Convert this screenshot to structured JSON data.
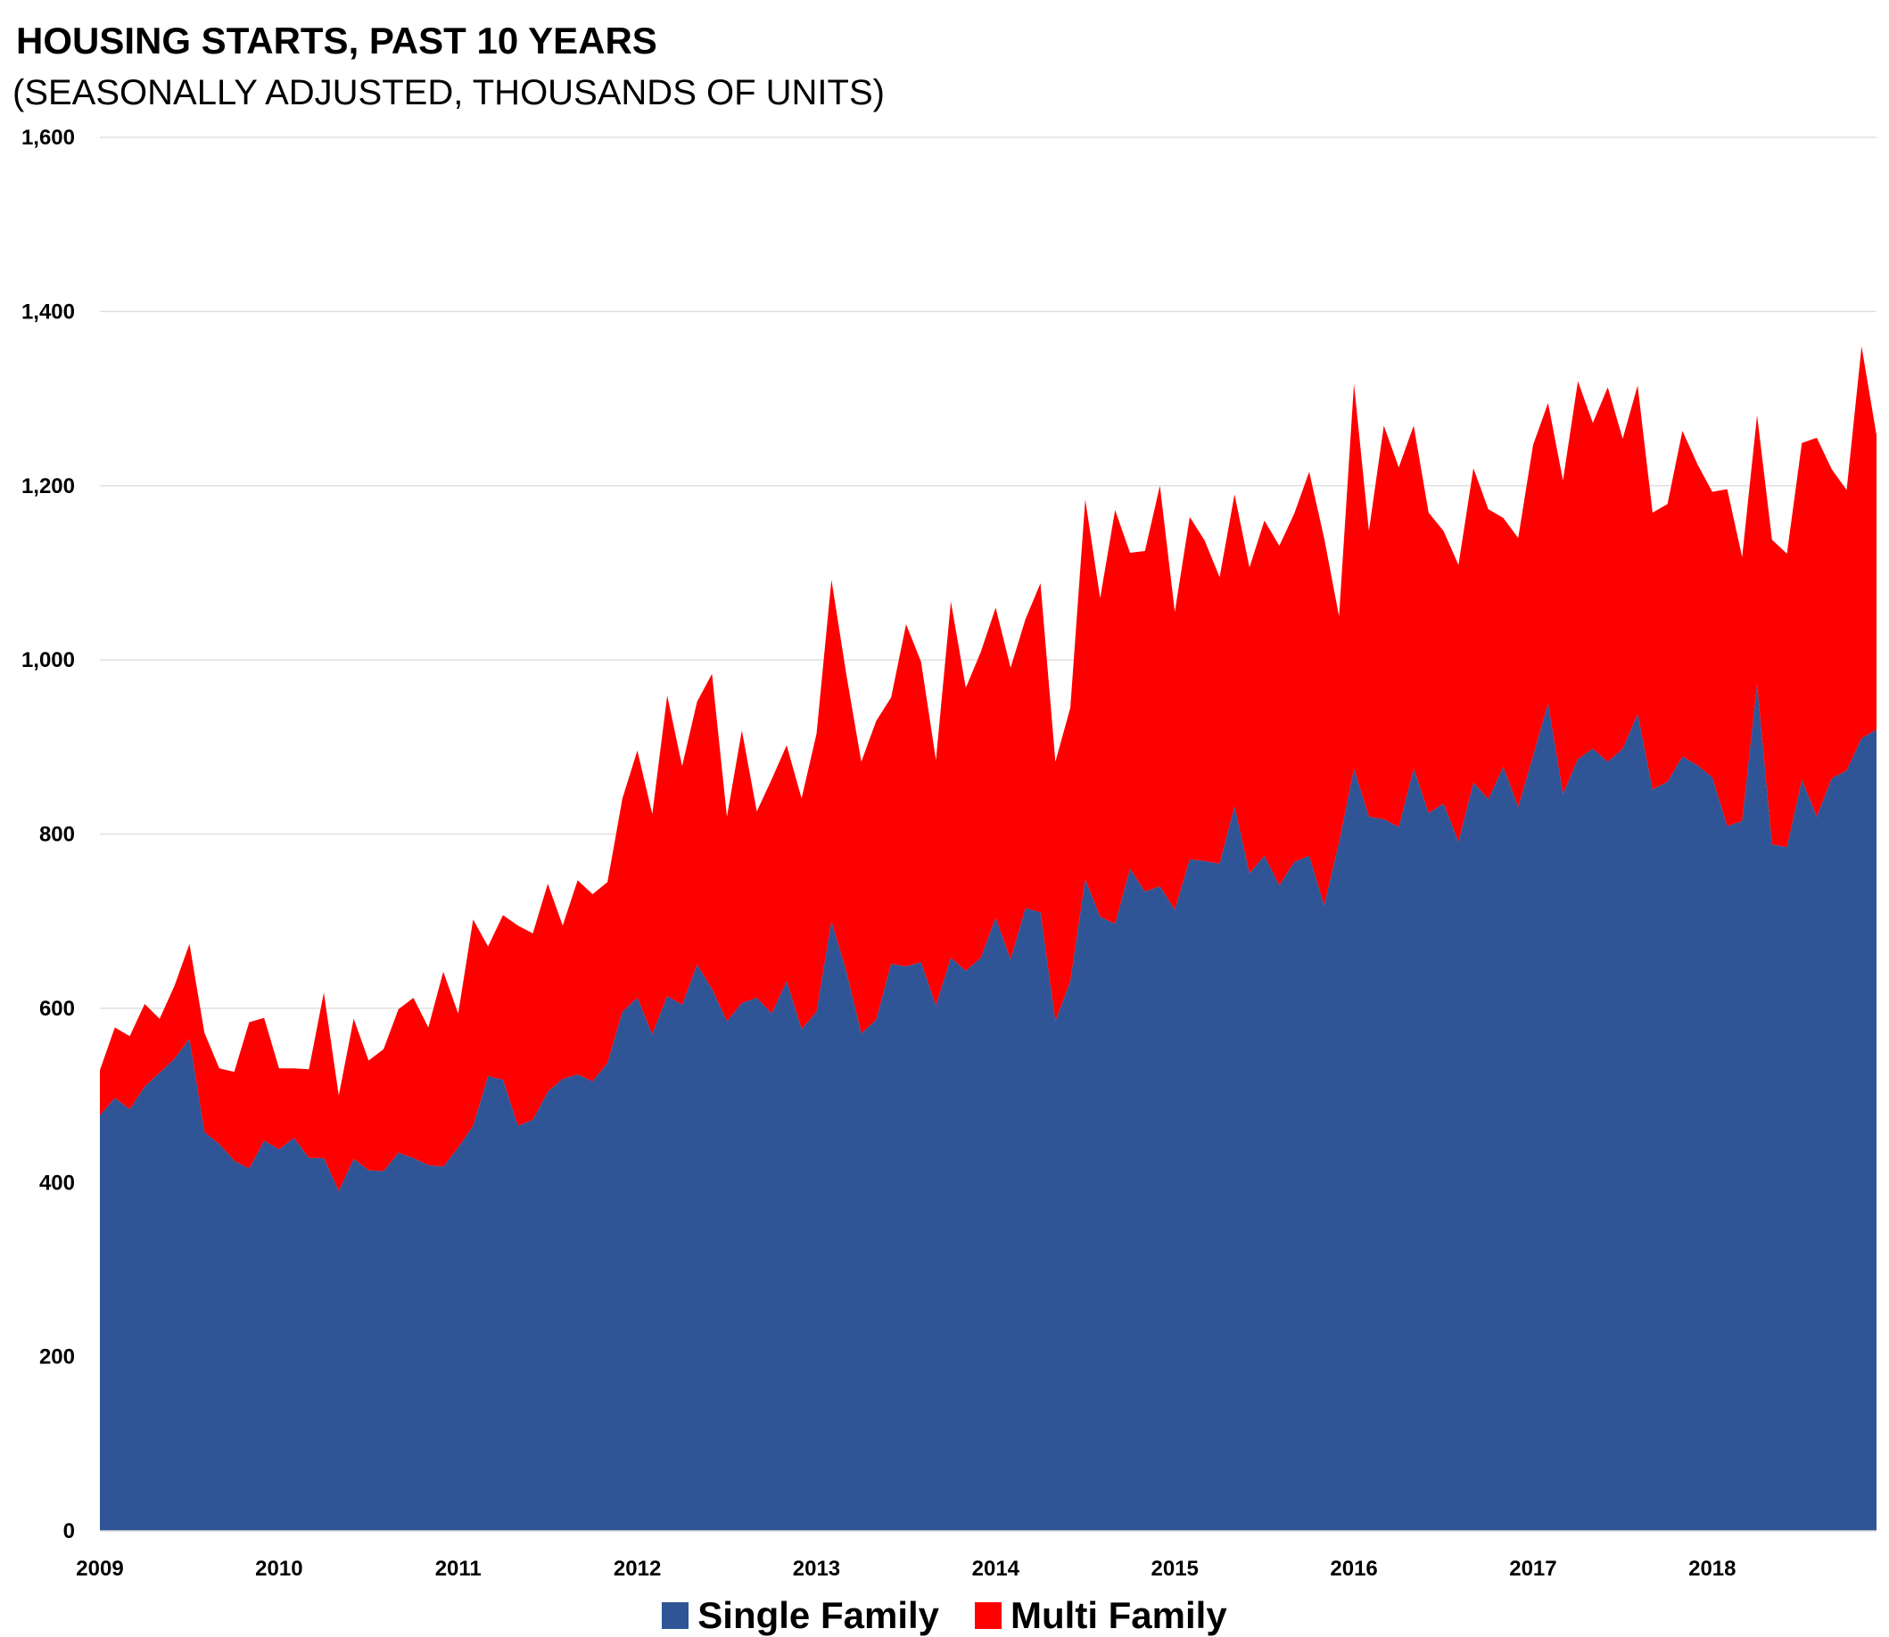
{
  "title": "HOUSING STARTS, PAST 10 YEARS",
  "subtitle": "(SEASONALLY ADJUSTED, THOUSANDS OF UNITS)",
  "legend": {
    "single": "Single Family",
    "multi": "Multi Family"
  },
  "colors": {
    "single": "#2f5597",
    "multi": "#ff0000",
    "grid": "#e0e0e0"
  },
  "chart_data": {
    "type": "area",
    "stacked": true,
    "ylim": [
      0,
      1600
    ],
    "yticks": [
      0,
      200,
      400,
      600,
      800,
      1000,
      1200,
      1400,
      1600
    ],
    "ytick_labels": [
      "0",
      "200",
      "400",
      "600",
      "800",
      "1,000",
      "1,200",
      "1,400",
      "1,600"
    ],
    "xlim": [
      2009,
      2018.917
    ],
    "xticks": [
      2009,
      2010,
      2011,
      2012,
      2013,
      2014,
      2015,
      2016,
      2017,
      2018
    ],
    "xtick_labels": [
      "2009",
      "2010",
      "2011",
      "2012",
      "2013",
      "2014",
      "2015",
      "2016",
      "2017",
      "2018"
    ],
    "grid": true,
    "legend_position": "bottom",
    "series": [
      {
        "name": "Single Family",
        "key": "single",
        "values": [
          477,
          497,
          484,
          510,
          526,
          542,
          565,
          458,
          444,
          425,
          416,
          448,
          438,
          451,
          428,
          428,
          390,
          427,
          414,
          413,
          434,
          428,
          420,
          418,
          440,
          465,
          522,
          518,
          465,
          472,
          504,
          519,
          524,
          516,
          537,
          596,
          612,
          570,
          614,
          604,
          650,
          622,
          585,
          606,
          612,
          594,
          631,
          576,
          596,
          700,
          642,
          571,
          587,
          651,
          648,
          653,
          603,
          658,
          643,
          658,
          704,
          656,
          715,
          710,
          585,
          631,
          748,
          705,
          697,
          760,
          734,
          740,
          713,
          771,
          769,
          766,
          832,
          755,
          775,
          741,
          768,
          775,
          718,
          790,
          875,
          820,
          817,
          808,
          875,
          824,
          835,
          791,
          859,
          840,
          877,
          831,
          890,
          950,
          846,
          886,
          898,
          883,
          898,
          938,
          851,
          860,
          889,
          879,
          865,
          809,
          815,
          972,
          788,
          785,
          862,
          820,
          864,
          873,
          910,
          920
        ]
      },
      {
        "name": "Multi Family",
        "key": "multi",
        "values": [
          52,
          81,
          84,
          95,
          62,
          84,
          109,
          114,
          87,
          102,
          168,
          141,
          93,
          80,
          102,
          190,
          110,
          161,
          126,
          140,
          165,
          184,
          158,
          224,
          154,
          237,
          149,
          189,
          230,
          214,
          239,
          176,
          223,
          215,
          208,
          245,
          284,
          253,
          345,
          274,
          302,
          362,
          235,
          313,
          214,
          269,
          271,
          265,
          319,
          392,
          341,
          312,
          343,
          306,
          393,
          345,
          282,
          409,
          325,
          351,
          356,
          335,
          332,
          378,
          298,
          314,
          436,
          366,
          475,
          363,
          391,
          460,
          342,
          393,
          368,
          329,
          358,
          351,
          385,
          390,
          400,
          441,
          422,
          260,
          442,
          328,
          452,
          413,
          394,
          345,
          313,
          318,
          361,
          333,
          286,
          309,
          357,
          345,
          360,
          434,
          374,
          430,
          356,
          377,
          318,
          319,
          374,
          346,
          328,
          387,
          303,
          309,
          350,
          337,
          387,
          435,
          355,
          322,
          450,
          338
        ]
      }
    ]
  }
}
